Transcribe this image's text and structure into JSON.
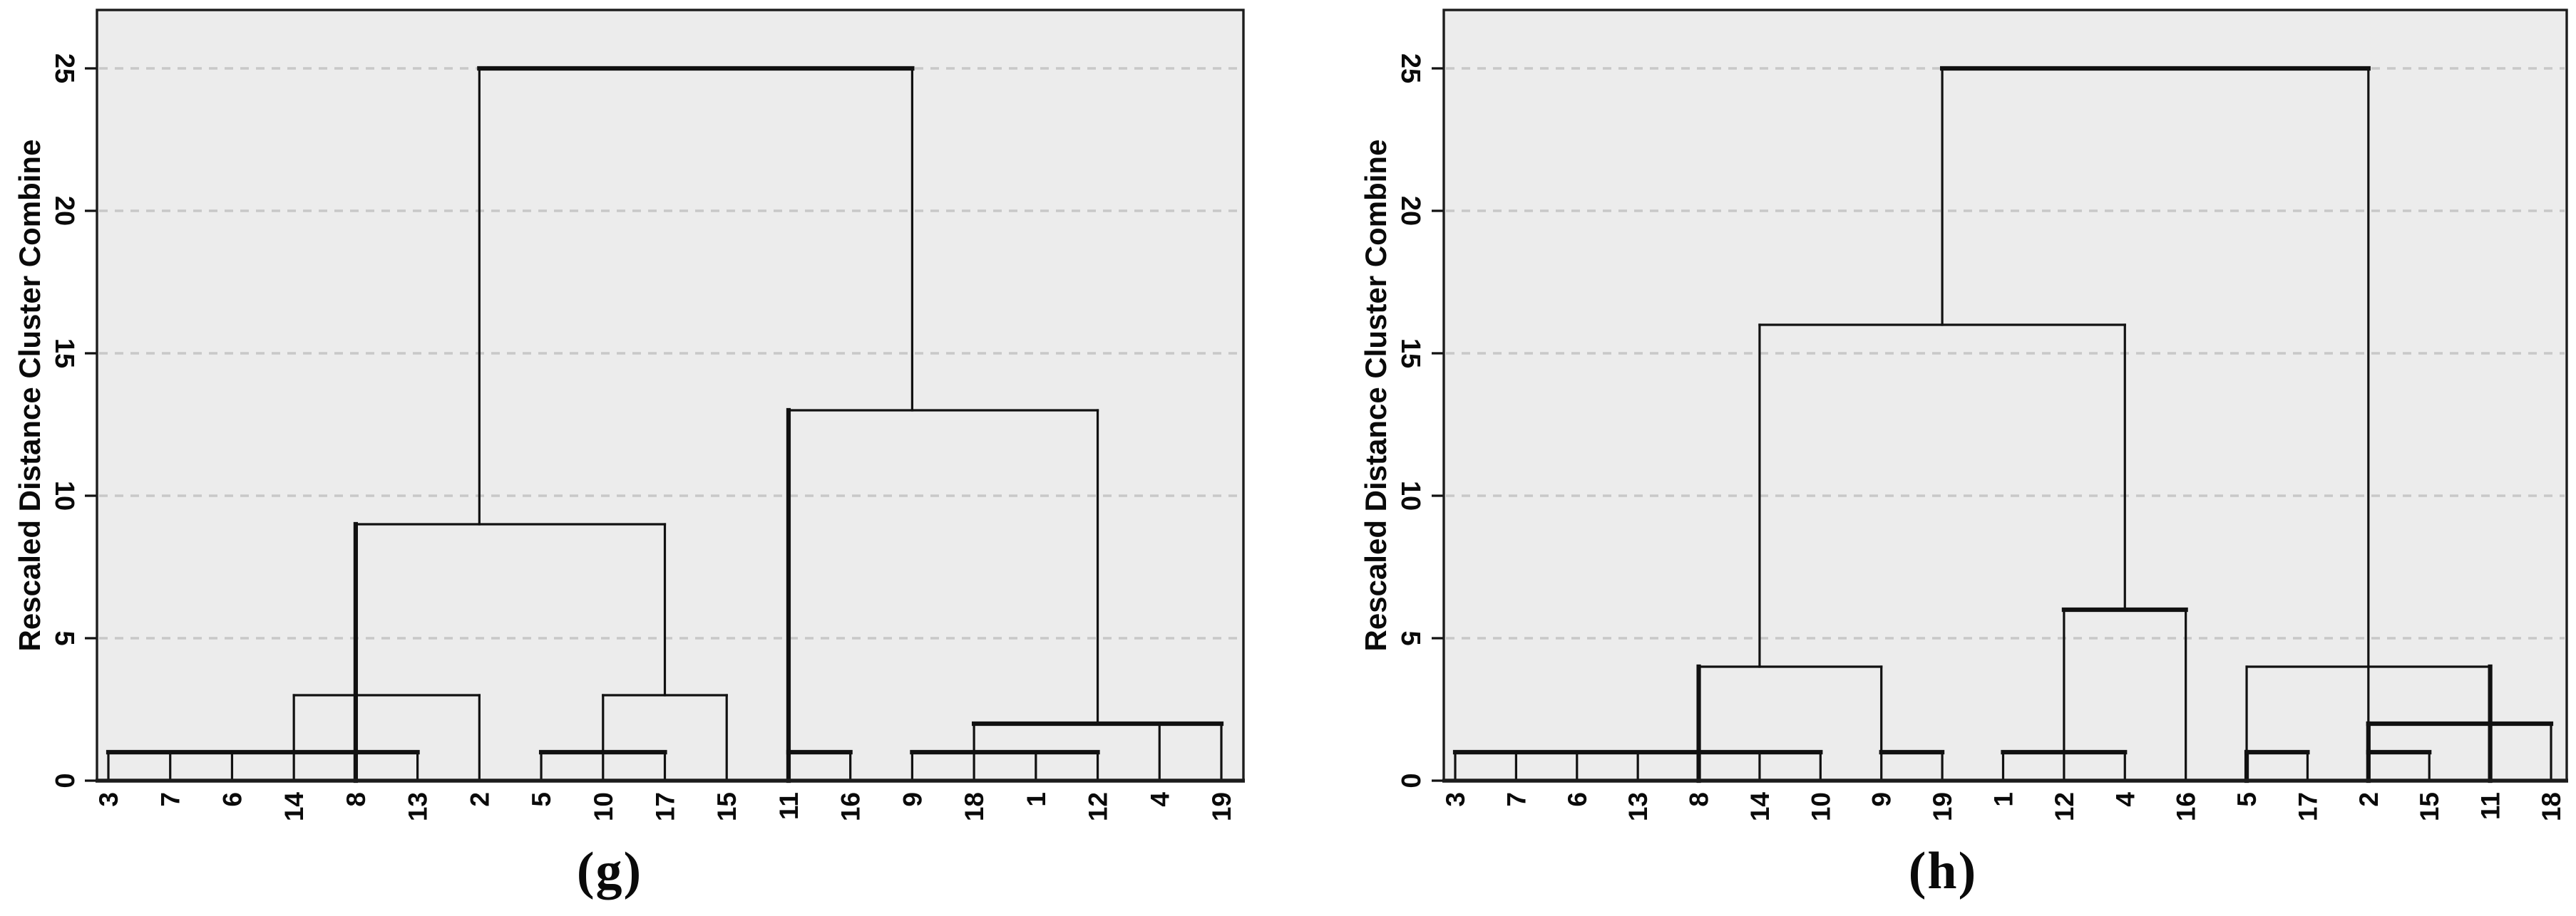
{
  "figure": {
    "background": "#ffffff",
    "plot_background": "#ececec",
    "line_color": "#111111",
    "grid_color": "#c8c8c8",
    "border_color": "#1c1c1c"
  },
  "chart_data": [
    {
      "type": "dendrogram",
      "caption": "(g)",
      "ylabel": "Rescaled Distance Cluster Combine",
      "yticks": [
        0,
        5,
        10,
        15,
        20,
        25
      ],
      "ylim": [
        0,
        27
      ],
      "grid": "dashed",
      "leaf_order": [
        "3",
        "7",
        "6",
        "14",
        "8",
        "13",
        "2",
        "5",
        "10",
        "17",
        "15",
        "11",
        "16",
        "9",
        "18",
        "1",
        "12",
        "4",
        "19"
      ],
      "merge_heights_present": [
        1,
        2,
        3,
        9,
        13,
        25
      ],
      "verticals": [
        [
          1,
          0,
          1,
          1
        ],
        [
          2,
          0,
          1,
          1
        ],
        [
          3,
          0,
          1,
          1
        ],
        [
          4,
          0,
          3,
          1
        ],
        [
          5,
          0,
          9,
          2
        ],
        [
          6,
          0,
          1,
          1
        ],
        [
          7,
          0,
          3,
          1
        ],
        [
          7,
          9,
          25,
          1
        ],
        [
          8,
          0,
          1,
          1
        ],
        [
          9,
          0,
          3,
          1
        ],
        [
          10,
          0,
          1,
          1
        ],
        [
          10,
          3,
          9,
          1
        ],
        [
          11,
          0,
          3,
          1
        ],
        [
          12,
          0,
          13,
          2
        ],
        [
          13,
          0,
          1,
          1
        ],
        [
          14,
          0,
          1,
          1
        ],
        [
          14,
          13,
          25,
          1
        ],
        [
          15,
          0,
          2,
          1
        ],
        [
          16,
          0,
          1,
          1
        ],
        [
          17,
          0,
          1,
          1
        ],
        [
          17,
          2,
          13,
          1
        ],
        [
          18,
          0,
          2,
          1
        ],
        [
          19,
          0,
          2,
          1
        ]
      ],
      "horizontals": [
        [
          1,
          1,
          6,
          2
        ],
        [
          3,
          4,
          7,
          1
        ],
        [
          1,
          8,
          10,
          2
        ],
        [
          3,
          9,
          11,
          1
        ],
        [
          9,
          5,
          10,
          1
        ],
        [
          1,
          12,
          13,
          2
        ],
        [
          1,
          14,
          17,
          2
        ],
        [
          2,
          15,
          19,
          2
        ],
        [
          13,
          12,
          17,
          1
        ],
        [
          25,
          7,
          14,
          2
        ]
      ]
    },
    {
      "type": "dendrogram",
      "caption": "(h)",
      "ylabel": "Rescaled Distance Cluster Combine",
      "yticks": [
        0,
        5,
        10,
        15,
        20,
        25
      ],
      "ylim": [
        0,
        27
      ],
      "grid": "dashed",
      "leaf_order": [
        "3",
        "7",
        "6",
        "13",
        "8",
        "14",
        "10",
        "9",
        "19",
        "1",
        "12",
        "4",
        "16",
        "5",
        "17",
        "2",
        "15",
        "11",
        "18"
      ],
      "merge_heights_present": [
        1,
        2,
        4,
        6,
        16,
        25
      ],
      "verticals": [
        [
          1,
          0,
          1,
          1
        ],
        [
          2,
          0,
          1,
          1
        ],
        [
          3,
          0,
          1,
          1
        ],
        [
          4,
          0,
          1,
          1
        ],
        [
          5,
          0,
          4,
          2
        ],
        [
          6,
          0,
          1,
          1
        ],
        [
          6,
          4,
          16,
          1
        ],
        [
          7,
          0,
          1,
          1
        ],
        [
          8,
          0,
          4,
          1
        ],
        [
          9,
          0,
          1,
          1
        ],
        [
          9,
          16,
          25,
          1
        ],
        [
          10,
          0,
          1,
          1
        ],
        [
          11,
          0,
          6,
          1
        ],
        [
          12,
          0,
          1,
          1
        ],
        [
          12,
          6,
          16,
          1
        ],
        [
          13,
          0,
          6,
          1
        ],
        [
          14,
          0,
          1,
          2
        ],
        [
          14,
          1,
          4,
          1
        ],
        [
          15,
          0,
          1,
          1
        ],
        [
          16,
          0,
          2,
          2
        ],
        [
          16,
          2,
          4,
          1
        ],
        [
          16,
          4,
          25,
          1
        ],
        [
          17,
          0,
          1,
          1
        ],
        [
          18,
          0,
          4,
          2
        ],
        [
          19,
          0,
          2,
          1
        ]
      ],
      "horizontals": [
        [
          1,
          1,
          7,
          2
        ],
        [
          1,
          8,
          9,
          2
        ],
        [
          4,
          5,
          8,
          1
        ],
        [
          1,
          10,
          12,
          2
        ],
        [
          6,
          11,
          13,
          2
        ],
        [
          16,
          6,
          12,
          1
        ],
        [
          1,
          14,
          15,
          2
        ],
        [
          1,
          16,
          17,
          2
        ],
        [
          2,
          16,
          19,
          2
        ],
        [
          4,
          14,
          18,
          1
        ],
        [
          25,
          9,
          16,
          2
        ]
      ]
    }
  ]
}
